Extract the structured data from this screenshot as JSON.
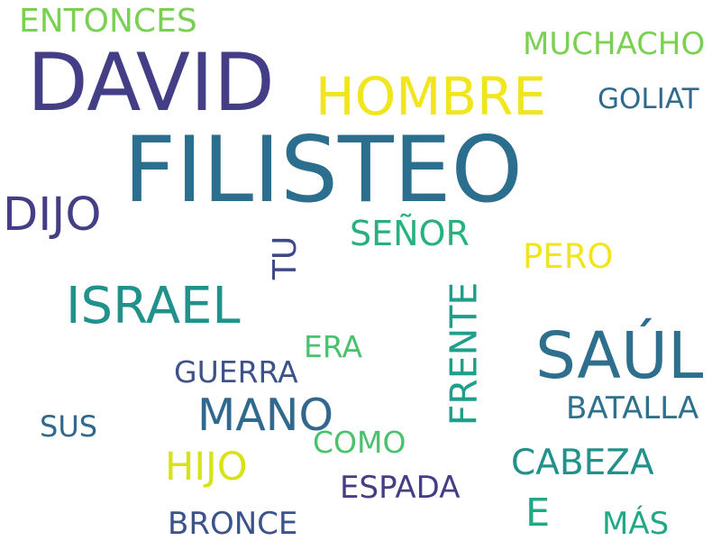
{
  "words": [
    {
      "text": "FILISTEO",
      "color": "#2c6e8e"
    },
    {
      "text": "DAVID",
      "color": "#433e85"
    },
    {
      "text": "SAÚL",
      "color": "#2e6f8e"
    },
    {
      "text": "HOMBRE",
      "color": "#f1e51d"
    },
    {
      "text": "ISRAEL",
      "color": "#21918c"
    },
    {
      "text": "DIJO",
      "color": "#433e85"
    },
    {
      "text": "MANO",
      "color": "#31688e"
    },
    {
      "text": "FRENTE",
      "color": "#1f9e89"
    },
    {
      "text": "ENTONCES",
      "color": "#7ad151"
    },
    {
      "text": "MUCHACHO",
      "color": "#7ad151"
    },
    {
      "text": "GOLIAT",
      "color": "#2f6b8e"
    },
    {
      "text": "SEÑOR",
      "color": "#2ab07f"
    },
    {
      "text": "TU",
      "color": "#3f4889"
    },
    {
      "text": "PERO",
      "color": "#f1e51d"
    },
    {
      "text": "ERA",
      "color": "#4ac16d"
    },
    {
      "text": "GUERRA",
      "color": "#3b528b"
    },
    {
      "text": "BATALLA",
      "color": "#2c728e"
    },
    {
      "text": "SUS",
      "color": "#31688e"
    },
    {
      "text": "COMO",
      "color": "#4ac16d"
    },
    {
      "text": "HIJO",
      "color": "#d8e219"
    },
    {
      "text": "CABEZA",
      "color": "#21918c"
    },
    {
      "text": "ESPADA",
      "color": "#433e85"
    },
    {
      "text": "E",
      "color": "#22a884"
    },
    {
      "text": "BRONCE",
      "color": "#3b528b"
    },
    {
      "text": "MÁS",
      "color": "#22a884"
    }
  ]
}
